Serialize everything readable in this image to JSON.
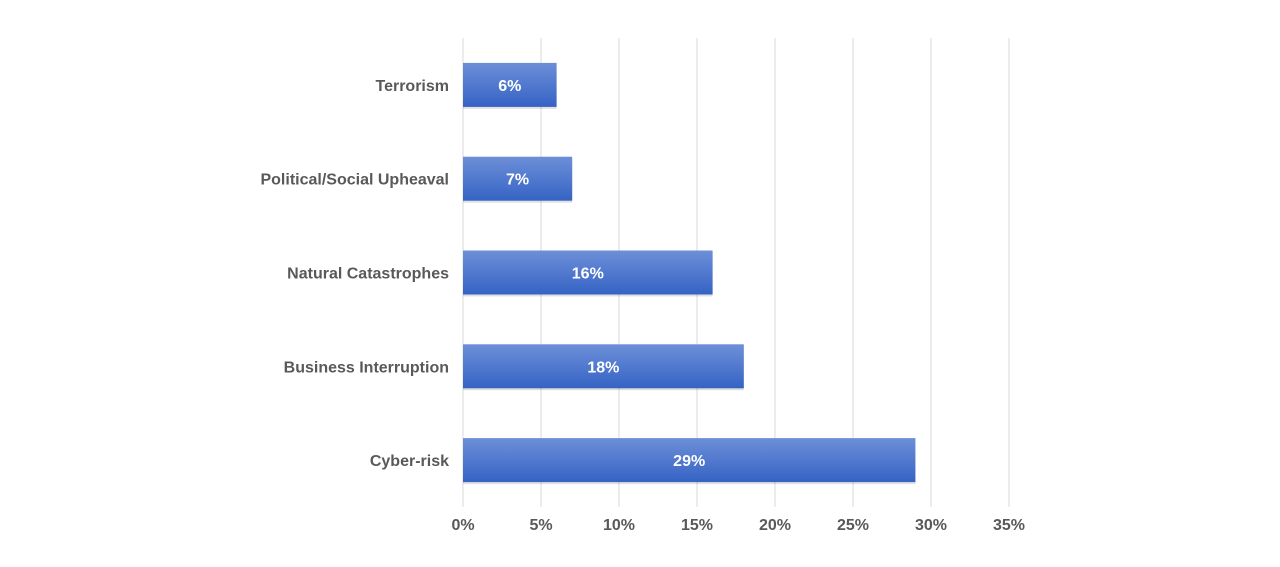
{
  "chart_data": {
    "type": "bar",
    "orientation": "horizontal",
    "categories": [
      "Terrorism",
      "Political/Social Upheaval",
      "Natural Catastrophes",
      "Business Interruption",
      "Cyber-risk"
    ],
    "values": [
      6,
      7,
      16,
      18,
      29
    ],
    "data_labels": [
      "6%",
      "7%",
      "16%",
      "18%",
      "29%"
    ],
    "xlim": [
      0,
      35
    ],
    "x_ticks": [
      0,
      5,
      10,
      15,
      20,
      25,
      30,
      35
    ],
    "x_tick_labels": [
      "0%",
      "5%",
      "10%",
      "15%",
      "20%",
      "25%",
      "30%",
      "35%"
    ],
    "grid": "vertical",
    "legend": "none",
    "colors": {
      "bar_top": "#6d8fd8",
      "bar_bottom": "#3563c4",
      "grid": "#d9d9d9",
      "text": "#595959",
      "data_label": "#ffffff"
    }
  }
}
